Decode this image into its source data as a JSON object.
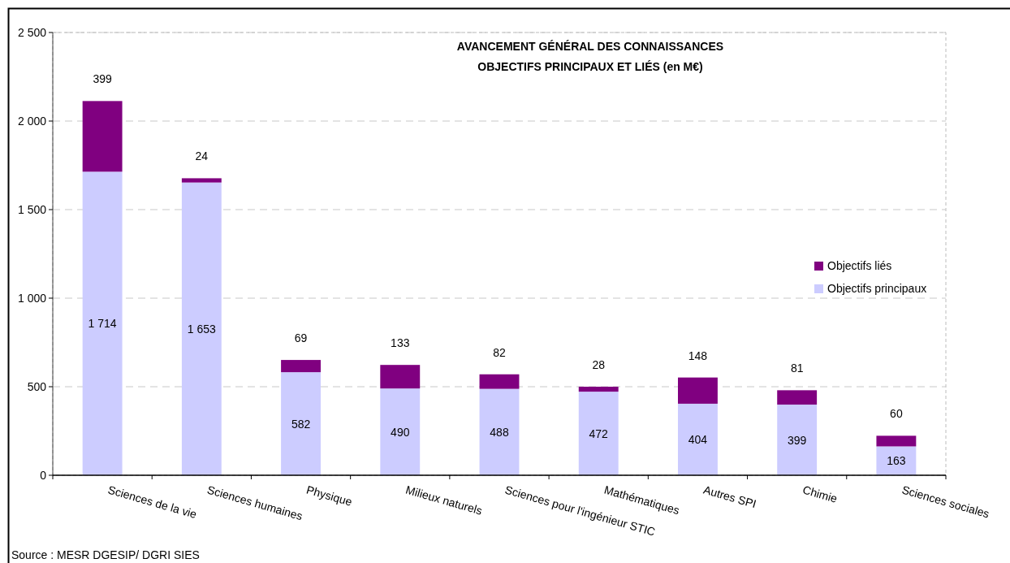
{
  "chart_data": {
    "type": "bar",
    "title": "AVANCEMENT GÉNÉRAL DES CONNAISSANCES",
    "subtitle": "OBJECTIFS PRINCIPAUX ET LIÉS (en M€)",
    "categories": [
      "Sciences de la vie",
      "Sciences humaines",
      "Physique",
      "Milieux naturels",
      "Sciences pour l'ingénieur STIC",
      "Mathématiques",
      "Autres SPI",
      "Chimie",
      "Sciences sociales"
    ],
    "series": [
      {
        "name": "Objectifs principaux",
        "color": "#ccccff",
        "values": [
          1714,
          1653,
          582,
          490,
          488,
          472,
          404,
          399,
          163
        ],
        "value_labels": [
          "1 714",
          "1 653",
          "582",
          "490",
          "488",
          "472",
          "404",
          "399",
          "163"
        ]
      },
      {
        "name": "Objectifs liés",
        "color": "#800080",
        "values": [
          399,
          24,
          69,
          133,
          82,
          28,
          148,
          81,
          60
        ],
        "value_labels": [
          "399",
          "24",
          "69",
          "133",
          "82",
          "28",
          "148",
          "81",
          "60"
        ]
      }
    ],
    "stacked": true,
    "ylim": [
      0,
      2500
    ],
    "yticks": [
      0,
      500,
      {
        "value": 1000,
        "label": "1 000"
      },
      {
        "value": 1500,
        "label": "1 500"
      },
      {
        "value": 2000,
        "label": "2 000"
      },
      {
        "value": 2500,
        "label": "2 500"
      }
    ],
    "grid": "y",
    "legend": "right",
    "annotations": [
      "Source : MESR DGESIP/ DGRI SIES"
    ]
  }
}
